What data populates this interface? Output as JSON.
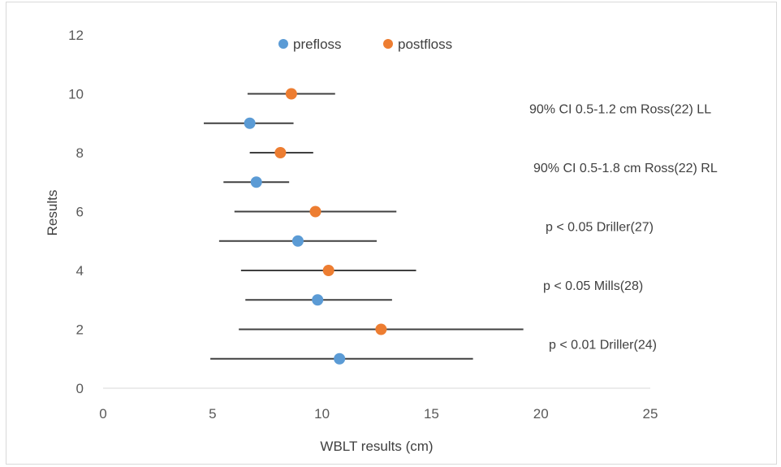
{
  "chart_data": {
    "type": "scatter",
    "title": "",
    "xlabel": "WBLT results (cm)",
    "ylabel": "Results",
    "xlim": [
      0,
      25
    ],
    "ylim": [
      0,
      12
    ],
    "xticks": [
      "0",
      "5",
      "10",
      "15",
      "20",
      "25"
    ],
    "yticks": [
      "0",
      "2",
      "4",
      "6",
      "8",
      "10",
      "12"
    ],
    "grid": false,
    "legend": "top-center",
    "series": [
      {
        "name": "prefloss",
        "color": "#5B9BD5",
        "points": [
          {
            "x": 10.8,
            "y": 1,
            "xerr_low": 4.9,
            "xerr_high": 16.9
          },
          {
            "x": 9.8,
            "y": 3,
            "xerr_low": 6.5,
            "xerr_high": 13.2
          },
          {
            "x": 8.9,
            "y": 5,
            "xerr_low": 5.3,
            "xerr_high": 12.5
          },
          {
            "x": 7.0,
            "y": 7,
            "xerr_low": 5.5,
            "xerr_high": 8.5
          },
          {
            "x": 6.7,
            "y": 9,
            "xerr_low": 4.6,
            "xerr_high": 8.7
          }
        ]
      },
      {
        "name": "postfloss",
        "color": "#ED7D31",
        "points": [
          {
            "x": 12.7,
            "y": 2,
            "xerr_low": 6.2,
            "xerr_high": 19.2
          },
          {
            "x": 10.3,
            "y": 4,
            "xerr_low": 6.3,
            "xerr_high": 14.3
          },
          {
            "x": 9.7,
            "y": 6,
            "xerr_low": 6.0,
            "xerr_high": 13.4
          },
          {
            "x": 8.1,
            "y": 8,
            "xerr_low": 6.7,
            "xerr_high": 9.6
          },
          {
            "x": 8.6,
            "y": 10,
            "xerr_low": 6.6,
            "xerr_high": 10.6
          }
        ]
      }
    ],
    "annotations": [
      {
        "text": "90% CI 0.5-1.2 cm Ross(22) LL",
        "y": 9.5
      },
      {
        "text": "90% CI 0.5-1.8 cm Ross(22) RL",
        "y": 7.5
      },
      {
        "text": "p < 0.05 Driller(27)",
        "y": 5.5
      },
      {
        "text": "p < 0.05 Mills(28)",
        "y": 3.5
      },
      {
        "text": "p < 0.01 Driller(24)",
        "y": 1.5
      }
    ]
  }
}
